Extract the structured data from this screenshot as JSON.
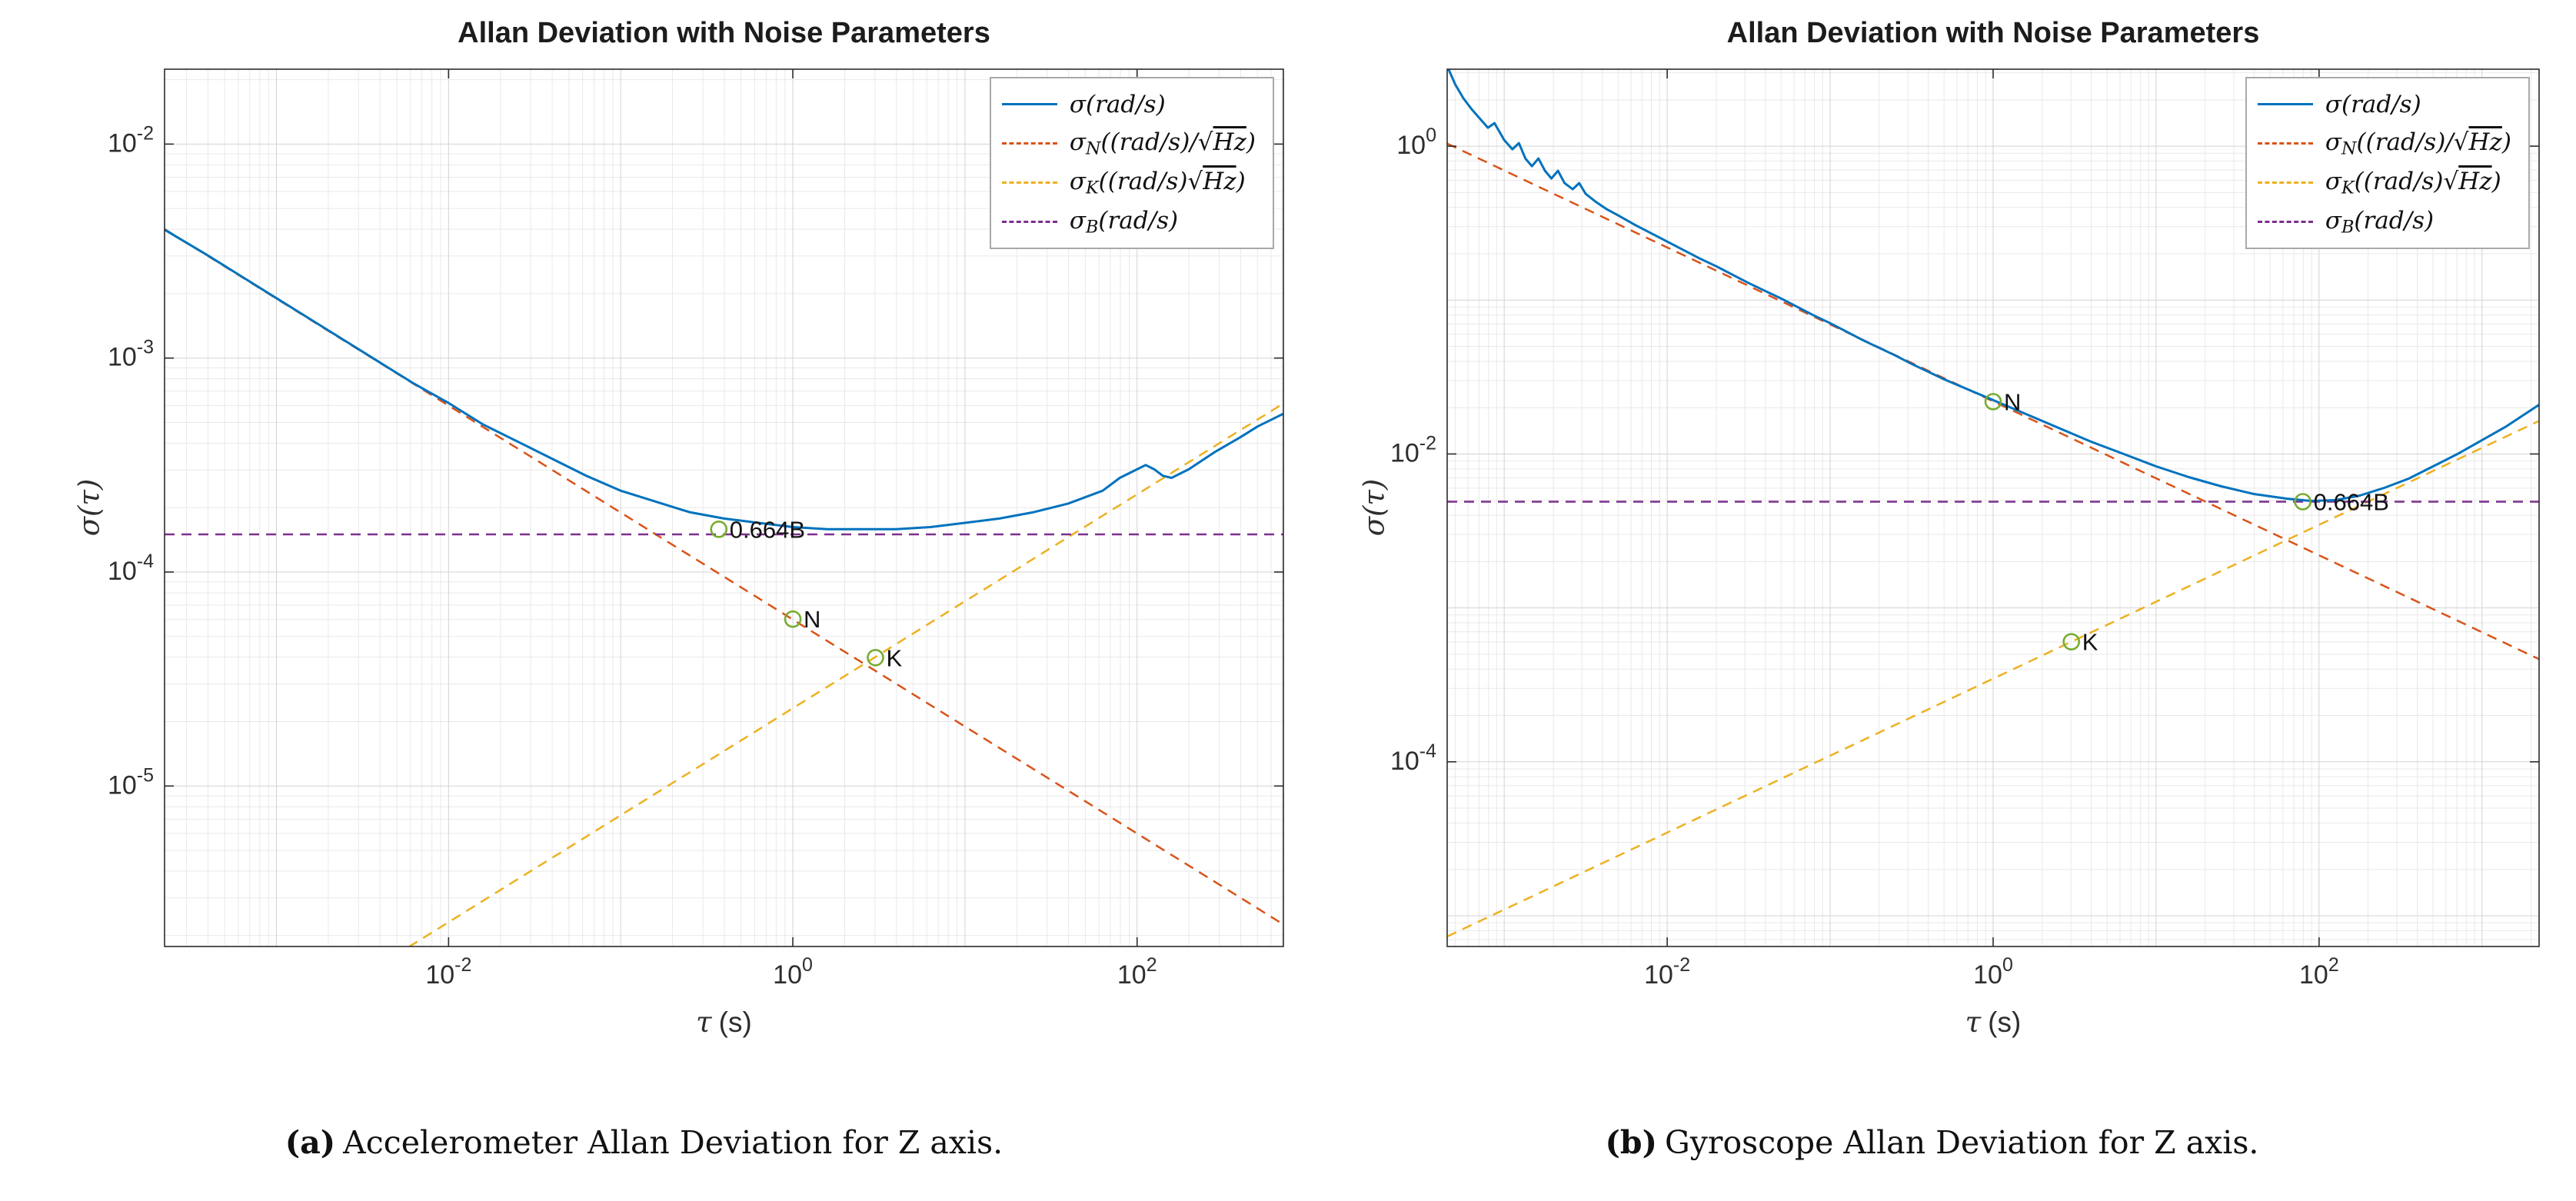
{
  "figure": {
    "background": "#ffffff"
  },
  "colors": {
    "sigma": "#0072BD",
    "sigma_N": "#D95319",
    "sigma_K": "#EDB120",
    "sigma_B": "#7E2F8E",
    "marker": "#77AC30",
    "grid_major": "#d3d3d3",
    "grid_minor": "#e9e9e9",
    "axis": "#2b2b2b"
  },
  "chart_data": [
    {
      "type": "line",
      "key": "accelerometer-z",
      "title": "Allan Deviation with Noise Parameters",
      "xlabel_sym": "τ",
      "xlabel_unit": "(s)",
      "ylabel": "σ(τ)",
      "xscale": "log",
      "yscale": "log",
      "xlim_log": [
        -3.65,
        2.85
      ],
      "ylim_log": [
        -5.75,
        -1.65
      ],
      "xticks": [
        -2,
        0,
        2
      ],
      "yticks": [
        -5,
        -4,
        -3,
        -2
      ],
      "grid": "major+minor",
      "legend_position": "top-right",
      "noise_params_readoff": {
        "N": 6e-05,
        "K": 4e-05,
        "floor_0664B": 0.00015
      },
      "marker_color": "#77AC30",
      "series": [
        {
          "name": "sigma_N",
          "color": "#D95319",
          "dash": true,
          "width": 2.5,
          "points": [
            [
              -3.65,
              -2.397
            ],
            [
              2.85,
              -5.647
            ]
          ]
        },
        {
          "name": "sigma_K",
          "color": "#EDB120",
          "dash": true,
          "width": 2.5,
          "points": [
            [
              -3.65,
              -6.461
            ],
            [
              2.85,
              -3.212
            ]
          ]
        },
        {
          "name": "sigma_B",
          "color": "#7E2F8E",
          "dash": true,
          "width": 2.5,
          "points": [
            [
              -3.65,
              -3.824
            ],
            [
              2.85,
              -3.824
            ]
          ]
        },
        {
          "name": "sigma",
          "color": "#0072BD",
          "dash": false,
          "width": 3,
          "points": [
            [
              -3.65,
              -2.4
            ],
            [
              -3.4,
              -2.52
            ],
            [
              -3.2,
              -2.62
            ],
            [
              -3.0,
              -2.72
            ],
            [
              -2.8,
              -2.82
            ],
            [
              -2.6,
              -2.92
            ],
            [
              -2.4,
              -3.02
            ],
            [
              -2.2,
              -3.12
            ],
            [
              -2.0,
              -3.21
            ],
            [
              -1.8,
              -3.31
            ],
            [
              -1.6,
              -3.39
            ],
            [
              -1.4,
              -3.47
            ],
            [
              -1.2,
              -3.55
            ],
            [
              -1.0,
              -3.62
            ],
            [
              -0.8,
              -3.67
            ],
            [
              -0.6,
              -3.72
            ],
            [
              -0.4,
              -3.75
            ],
            [
              -0.2,
              -3.77
            ],
            [
              0.0,
              -3.79
            ],
            [
              0.2,
              -3.8
            ],
            [
              0.4,
              -3.8
            ],
            [
              0.6,
              -3.8
            ],
            [
              0.8,
              -3.79
            ],
            [
              1.0,
              -3.77
            ],
            [
              1.2,
              -3.75
            ],
            [
              1.4,
              -3.72
            ],
            [
              1.6,
              -3.68
            ],
            [
              1.8,
              -3.62
            ],
            [
              1.9,
              -3.56
            ],
            [
              2.0,
              -3.52
            ],
            [
              2.05,
              -3.5
            ],
            [
              2.1,
              -3.52
            ],
            [
              2.15,
              -3.55
            ],
            [
              2.2,
              -3.56
            ],
            [
              2.3,
              -3.52
            ],
            [
              2.45,
              -3.44
            ],
            [
              2.6,
              -3.37
            ],
            [
              2.7,
              -3.32
            ],
            [
              2.85,
              -3.26
            ]
          ]
        }
      ],
      "markers": [
        {
          "x": -0.43,
          "y": -3.8,
          "label": "0.664B"
        },
        {
          "x": 0.0,
          "y": -4.22,
          "label": "N"
        },
        {
          "x": 0.48,
          "y": -4.4,
          "label": "K"
        }
      ],
      "legend": [
        {
          "color": "#0072BD",
          "dash": false,
          "segments": [
            {
              "t": "σ(rad/s)"
            }
          ]
        },
        {
          "color": "#D95319",
          "dash": true,
          "segments": [
            {
              "t": "σ"
            },
            {
              "t": "N",
              "sub": true
            },
            {
              "t": "((rad/s)/"
            },
            {
              "t": "√"
            },
            {
              "t": "Hz",
              "over": true
            },
            {
              "t": ")"
            }
          ]
        },
        {
          "color": "#EDB120",
          "dash": true,
          "segments": [
            {
              "t": "σ"
            },
            {
              "t": "K",
              "sub": true
            },
            {
              "t": "((rad/s)"
            },
            {
              "t": "√"
            },
            {
              "t": "Hz",
              "over": true
            },
            {
              "t": ")"
            }
          ]
        },
        {
          "color": "#7E2F8E",
          "dash": true,
          "segments": [
            {
              "t": "σ"
            },
            {
              "t": "B",
              "sub": true
            },
            {
              "t": "(rad/s)"
            }
          ]
        }
      ],
      "caption_label": "(a)",
      "caption_text": "Accelerometer Allan Deviation for Z axis."
    },
    {
      "type": "line",
      "key": "gyroscope-z",
      "title": "Allan Deviation with Noise Parameters",
      "xlabel_sym": "τ",
      "xlabel_unit": "(s)",
      "ylabel": "σ(τ)",
      "xscale": "log",
      "yscale": "log",
      "xlim_log": [
        -3.35,
        3.35
      ],
      "ylim_log": [
        -5.2,
        0.5
      ],
      "xticks": [
        -2,
        0,
        2
      ],
      "yticks": [
        -4,
        -2,
        0
      ],
      "grid": "major+minor",
      "legend_position": "top-right",
      "noise_params_readoff": {
        "N": 0.022,
        "K": 0.0006,
        "floor_0664B": 0.0049
      },
      "marker_color": "#77AC30",
      "series": [
        {
          "name": "sigma_N",
          "color": "#D95319",
          "dash": true,
          "width": 2.5,
          "points": [
            [
              -3.35,
              0.017
            ],
            [
              3.35,
              -3.333
            ]
          ]
        },
        {
          "name": "sigma_K",
          "color": "#EDB120",
          "dash": true,
          "width": 2.5,
          "points": [
            [
              -3.35,
              -5.135
            ],
            [
              3.35,
              -1.785
            ]
          ]
        },
        {
          "name": "sigma_B",
          "color": "#7E2F8E",
          "dash": true,
          "width": 2.5,
          "points": [
            [
              -3.35,
              -2.31
            ],
            [
              3.35,
              -2.31
            ]
          ]
        },
        {
          "name": "sigma",
          "color": "#0072BD",
          "dash": false,
          "width": 3,
          "points": [
            [
              -3.35,
              0.52
            ],
            [
              -3.3,
              0.4
            ],
            [
              -3.25,
              0.31
            ],
            [
              -3.2,
              0.24
            ],
            [
              -3.15,
              0.18
            ],
            [
              -3.1,
              0.12
            ],
            [
              -3.06,
              0.15
            ],
            [
              -3.0,
              0.04
            ],
            [
              -2.95,
              -0.02
            ],
            [
              -2.91,
              0.02
            ],
            [
              -2.87,
              -0.08
            ],
            [
              -2.83,
              -0.13
            ],
            [
              -2.79,
              -0.08
            ],
            [
              -2.75,
              -0.16
            ],
            [
              -2.71,
              -0.21
            ],
            [
              -2.67,
              -0.16
            ],
            [
              -2.63,
              -0.24
            ],
            [
              -2.58,
              -0.28
            ],
            [
              -2.54,
              -0.24
            ],
            [
              -2.5,
              -0.31
            ],
            [
              -2.44,
              -0.36
            ],
            [
              -2.37,
              -0.41
            ],
            [
              -2.3,
              -0.45
            ],
            [
              -2.2,
              -0.51
            ],
            [
              -2.1,
              -0.565
            ],
            [
              -2.0,
              -0.62
            ],
            [
              -1.9,
              -0.675
            ],
            [
              -1.8,
              -0.73
            ],
            [
              -1.7,
              -0.78
            ],
            [
              -1.6,
              -0.835
            ],
            [
              -1.5,
              -0.89
            ],
            [
              -1.4,
              -0.94
            ],
            [
              -1.3,
              -0.99
            ],
            [
              -1.2,
              -1.045
            ],
            [
              -1.1,
              -1.1
            ],
            [
              -1.0,
              -1.15
            ],
            [
              -0.9,
              -1.205
            ],
            [
              -0.8,
              -1.26
            ],
            [
              -0.7,
              -1.31
            ],
            [
              -0.6,
              -1.36
            ],
            [
              -0.5,
              -1.415
            ],
            [
              -0.4,
              -1.465
            ],
            [
              -0.3,
              -1.515
            ],
            [
              -0.2,
              -1.56
            ],
            [
              -0.1,
              -1.605
            ],
            [
              0.0,
              -1.65
            ],
            [
              0.2,
              -1.74
            ],
            [
              0.4,
              -1.83
            ],
            [
              0.6,
              -1.92
            ],
            [
              0.8,
              -2.0
            ],
            [
              1.0,
              -2.08
            ],
            [
              1.2,
              -2.15
            ],
            [
              1.4,
              -2.21
            ],
            [
              1.6,
              -2.26
            ],
            [
              1.8,
              -2.29
            ],
            [
              1.95,
              -2.305
            ],
            [
              2.1,
              -2.3
            ],
            [
              2.25,
              -2.27
            ],
            [
              2.4,
              -2.22
            ],
            [
              2.55,
              -2.16
            ],
            [
              2.7,
              -2.08
            ],
            [
              2.85,
              -2.0
            ],
            [
              3.0,
              -1.91
            ],
            [
              3.15,
              -1.82
            ],
            [
              3.25,
              -1.75
            ],
            [
              3.35,
              -1.68
            ]
          ]
        }
      ],
      "markers": [
        {
          "x": 1.9,
          "y": -2.31,
          "label": "0.664B"
        },
        {
          "x": 0.0,
          "y": -1.66,
          "label": "N"
        },
        {
          "x": 0.48,
          "y": -3.22,
          "label": "K"
        }
      ],
      "legend": [
        {
          "color": "#0072BD",
          "dash": false,
          "segments": [
            {
              "t": "σ(rad/s)"
            }
          ]
        },
        {
          "color": "#D95319",
          "dash": true,
          "segments": [
            {
              "t": "σ"
            },
            {
              "t": "N",
              "sub": true
            },
            {
              "t": "((rad/s)/"
            },
            {
              "t": "√"
            },
            {
              "t": "Hz",
              "over": true
            },
            {
              "t": ")"
            }
          ]
        },
        {
          "color": "#EDB120",
          "dash": true,
          "segments": [
            {
              "t": "σ"
            },
            {
              "t": "K",
              "sub": true
            },
            {
              "t": "((rad/s)"
            },
            {
              "t": "√"
            },
            {
              "t": "Hz",
              "over": true
            },
            {
              "t": ")"
            }
          ]
        },
        {
          "color": "#7E2F8E",
          "dash": true,
          "segments": [
            {
              "t": "σ"
            },
            {
              "t": "B",
              "sub": true
            },
            {
              "t": "(rad/s)"
            }
          ]
        }
      ],
      "caption_label": "(b)",
      "caption_text": "Gyroscope Allan Deviation for Z axis."
    }
  ]
}
